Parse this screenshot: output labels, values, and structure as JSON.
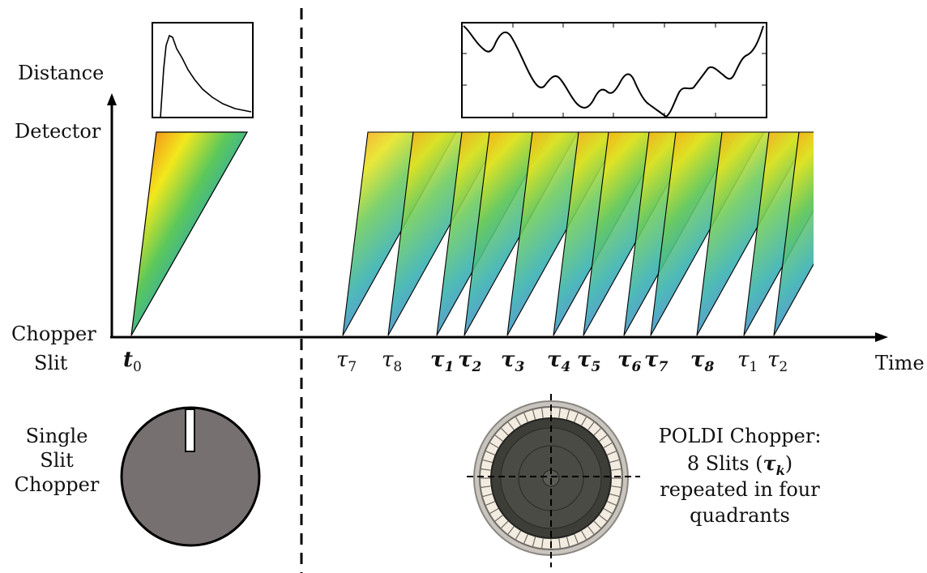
{
  "labels": {
    "y_axis_top": "Distance",
    "detector": "Detector",
    "chopper_slit_line1": "Chopper",
    "chopper_slit_line2": "Slit",
    "x_axis": "Time",
    "t0": "t",
    "t0_sub": "0"
  },
  "tau_labels": [
    {
      "sym": "τ",
      "sub": "7",
      "bold": false
    },
    {
      "sym": "τ",
      "sub": "8",
      "bold": false
    },
    {
      "sym": "τ",
      "sub": "1",
      "bold": true
    },
    {
      "sym": "τ",
      "sub": "2",
      "bold": true
    },
    {
      "sym": "τ",
      "sub": "3",
      "bold": true
    },
    {
      "sym": "τ",
      "sub": "4",
      "bold": true
    },
    {
      "sym": "τ",
      "sub": "5",
      "bold": true
    },
    {
      "sym": "τ",
      "sub": "6",
      "bold": true
    },
    {
      "sym": "τ",
      "sub": "7",
      "bold": true
    },
    {
      "sym": "τ",
      "sub": "8",
      "bold": true
    },
    {
      "sym": "τ",
      "sub": "1",
      "bold": false
    },
    {
      "sym": "τ",
      "sub": "2",
      "bold": false
    }
  ],
  "single_chopper": {
    "line1": "Single",
    "line2": "Slit",
    "line3": "Chopper"
  },
  "poldi_chopper": {
    "line1": "POLDI Chopper:",
    "line2_pre": "8 Slits (",
    "line2_sym": "τ",
    "line2_sub": "k",
    "line2_post": ")",
    "line3": "repeated in four",
    "line4": "quadrants"
  },
  "colors": {
    "disk": "#777070",
    "axis": "#000000",
    "spectrum": [
      "#e0301e",
      "#f4a21a",
      "#f2e81c",
      "#5cc85a",
      "#2fa7b4",
      "#3a73c4",
      "#5b3fa8"
    ]
  }
}
